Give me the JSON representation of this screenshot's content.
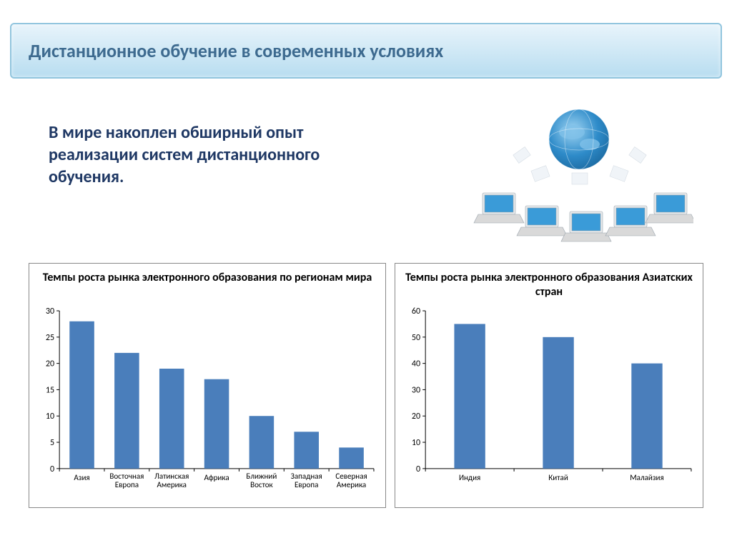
{
  "title": "Дистанционное обучение в современных условиях",
  "subtitle": "В мире накоплен обширный опыт реализации систем дистанционного обучения.",
  "title_bar": {
    "border_color": "#92c5de",
    "gradient_top": "#e8f4fb",
    "gradient_bottom": "#b8ddf0",
    "text_color": "#3d6a8f",
    "font_size": 26
  },
  "subtitle_style": {
    "color": "#1f3864",
    "font_size": 24,
    "font_weight": "bold"
  },
  "illustration": {
    "globe_color": "#2e8bc9",
    "globe_highlight": "#7fc1e8",
    "laptop_screen_color": "#3a9bd8",
    "laptop_body_color": "#d9d9d9",
    "laptop_count": 6
  },
  "chart_left": {
    "type": "bar",
    "title": "Темпы роста рынка электронного образования по регионам мира",
    "title_fontsize": 16,
    "categories": [
      "Азия",
      "Восточная Европа",
      "Латинская Америка",
      "Африка",
      "Ближний Восток",
      "Западная Европа",
      "Северная Америка"
    ],
    "values": [
      28,
      22,
      19,
      17,
      10,
      7,
      4
    ],
    "bar_color": "#4a7ebb",
    "ylim": [
      0,
      30
    ],
    "ytick_step": 5,
    "bar_width_ratio": 0.55,
    "background_color": "#ffffff",
    "border_color": "#888888",
    "axis_color": "#000000",
    "grid_color": "#bfbfbf",
    "tick_label_fontsize": 12,
    "cat_label_fontsize": 11
  },
  "chart_right": {
    "type": "bar",
    "title": "Темпы роста рынка электронного образования Азиатских стран",
    "title_fontsize": 16,
    "categories": [
      "Индия",
      "Китай",
      "Малайзия"
    ],
    "values": [
      55,
      50,
      40
    ],
    "bar_color": "#4a7ebb",
    "ylim": [
      0,
      60
    ],
    "ytick_step": 10,
    "bar_width_ratio": 0.35,
    "background_color": "#ffffff",
    "border_color": "#888888",
    "axis_color": "#000000",
    "grid_color": "#bfbfbf",
    "tick_label_fontsize": 12,
    "cat_label_fontsize": 11
  }
}
